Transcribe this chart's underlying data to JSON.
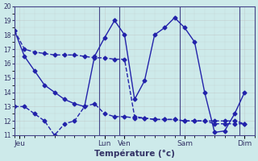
{
  "title": "Température (°c)",
  "ylim": [
    11,
    20
  ],
  "yticks": [
    11,
    12,
    13,
    14,
    15,
    16,
    17,
    18,
    19,
    20
  ],
  "bg_color": "#cdeaea",
  "line_color": "#2222aa",
  "grid_color": "#bbbbbb",
  "x_tick_labels": [
    "Jeu",
    "Lun",
    "Ven",
    "Sam",
    "Dim"
  ],
  "x_tick_positions": [
    0.5,
    9,
    11,
    17,
    23
  ],
  "x_total": 24,
  "xlim": [
    0,
    24
  ],
  "line1_x": [
    0,
    1,
    2,
    3,
    4,
    5,
    6,
    7,
    8,
    9,
    10,
    11,
    12,
    13,
    14,
    15,
    16,
    17,
    18,
    19,
    20,
    21,
    22,
    23
  ],
  "line1_y": [
    18.3,
    17.0,
    16.8,
    16.7,
    16.6,
    16.6,
    16.6,
    16.5,
    16.4,
    16.4,
    16.3,
    16.3,
    12.3,
    12.2,
    12.1,
    12.1,
    12.1,
    12.0,
    12.0,
    12.0,
    12.0,
    12.0,
    12.0,
    11.8
  ],
  "line2_x": [
    0,
    1,
    2,
    3,
    4,
    5,
    6,
    7,
    8,
    9,
    10,
    11,
    12,
    13,
    14,
    15,
    16,
    17,
    18,
    19,
    20,
    21,
    22,
    23
  ],
  "line2_y": [
    18.3,
    16.5,
    15.5,
    14.5,
    14.0,
    13.5,
    13.2,
    13.0,
    16.5,
    17.8,
    19.0,
    18.0,
    13.5,
    14.8,
    18.0,
    18.5,
    19.2,
    18.5,
    17.5,
    14.0,
    11.2,
    11.3,
    12.5,
    14.0
  ],
  "line3_x": [
    0,
    1,
    2,
    3,
    4,
    5,
    6,
    7,
    8,
    9,
    10,
    11,
    12,
    13,
    14,
    15,
    16,
    17,
    18,
    19,
    20,
    21,
    22,
    23
  ],
  "line3_y": [
    13.0,
    13.0,
    12.5,
    12.0,
    11.0,
    11.8,
    12.0,
    13.0,
    13.2,
    12.5,
    12.3,
    12.3,
    12.2,
    12.2,
    12.1,
    12.1,
    12.1,
    12.0,
    12.0,
    12.0,
    11.8,
    11.8,
    11.8,
    11.8
  ],
  "vline_positions": [
    8.5,
    10.5,
    16.5,
    22.5
  ],
  "vline_color": "#444488",
  "marker": "D",
  "markersize": 2.5,
  "linewidth": 1.0
}
